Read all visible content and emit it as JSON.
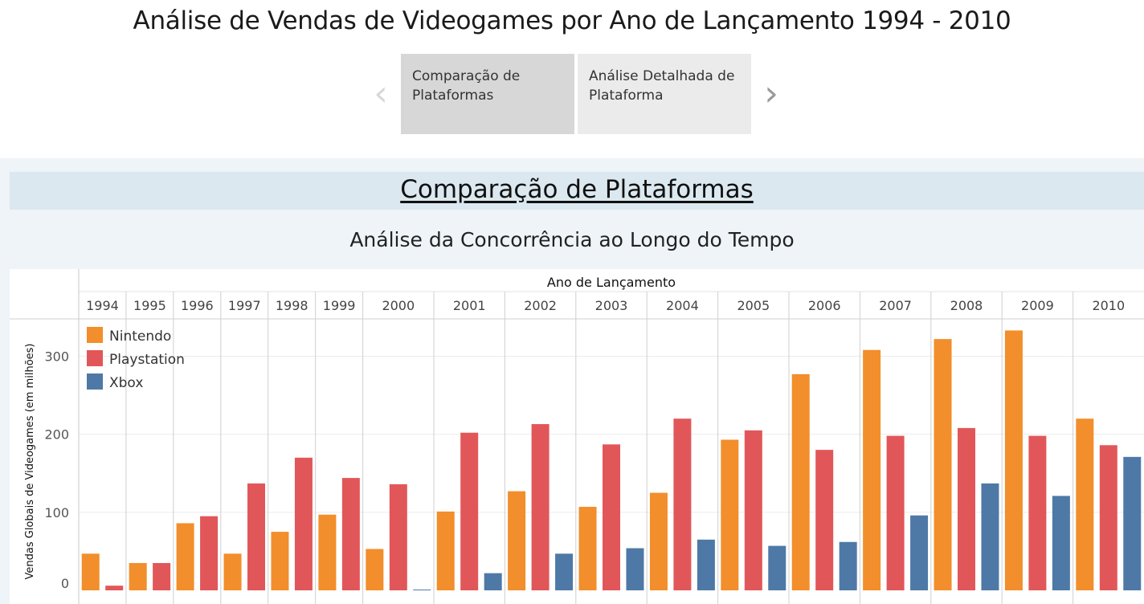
{
  "page": {
    "title": "Análise de Vendas de Videogames por Ano de Lançamento 1994 - 2010"
  },
  "story_nav": {
    "tabs": [
      {
        "label": "Comparação de Plataformas",
        "active": true
      },
      {
        "label": "Análise Detalhada de Plataforma",
        "active": false
      }
    ],
    "prev_icon": "chevron-left-icon",
    "next_icon": "chevron-right-icon"
  },
  "section": {
    "title": "Comparação de Plataformas",
    "subtitle": "Análise da Concorrência ao Longo do Tempo"
  },
  "colors": {
    "nintendo": "#f28e2b",
    "playstation": "#e15759",
    "xbox": "#4e79a7"
  },
  "chart_data": {
    "type": "bar",
    "title": "Análise da Concorrência ao Longo do Tempo",
    "xlabel": "Ano de Lançamento",
    "ylabel": "Vendas Globais de Videogames (em milhões)",
    "ylim": [
      0,
      345
    ],
    "yticks": [
      0,
      100,
      200,
      300
    ],
    "grid": true,
    "legend_position": "top-left",
    "categories": [
      "1994",
      "1995",
      "1996",
      "1997",
      "1998",
      "1999",
      "2000",
      "2001",
      "2002",
      "2003",
      "2004",
      "2005",
      "2006",
      "2007",
      "2008",
      "2009",
      "2010"
    ],
    "series": [
      {
        "name": "Nintendo",
        "color": "#f28e2b",
        "values": [
          47,
          35,
          86,
          47,
          75,
          97,
          53,
          101,
          127,
          107,
          125,
          193,
          277,
          308,
          322,
          333,
          220
        ]
      },
      {
        "name": "Playstation",
        "color": "#e15759",
        "values": [
          6,
          35,
          95,
          137,
          170,
          144,
          136,
          202,
          213,
          187,
          220,
          205,
          180,
          198,
          208,
          198,
          186
        ]
      },
      {
        "name": "Xbox",
        "color": "#4e79a7",
        "values": [
          null,
          null,
          null,
          null,
          null,
          null,
          1,
          22,
          47,
          54,
          65,
          57,
          62,
          96,
          137,
          121,
          171
        ]
      }
    ]
  }
}
